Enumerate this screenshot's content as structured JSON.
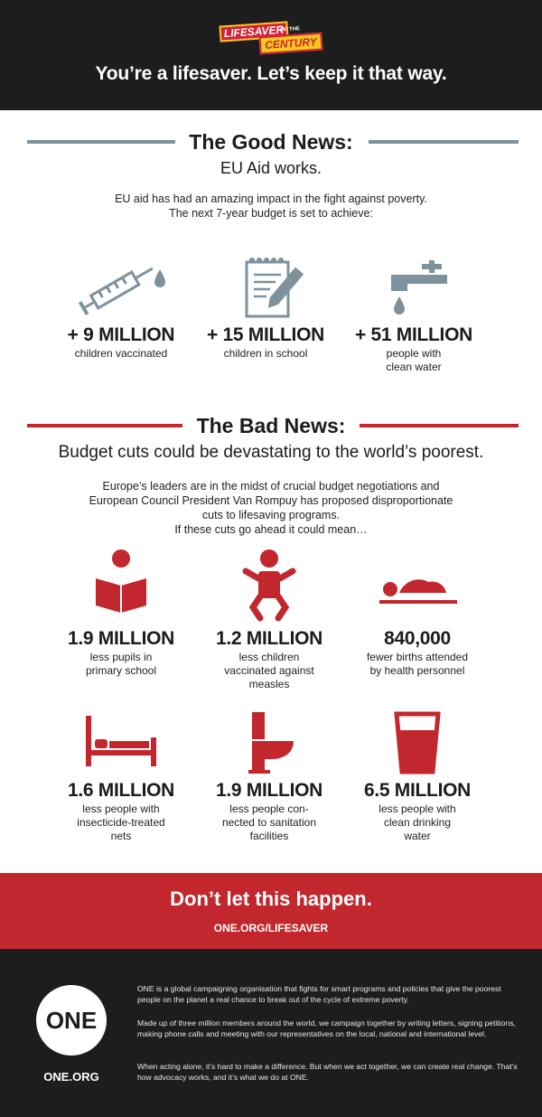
{
  "header": {
    "logo_top": "LIFESAVER",
    "logo_mid": "OF THE",
    "logo_bottom": "CENTURY",
    "tagline": "You’re a lifesaver. Let’s keep it that way."
  },
  "good_news": {
    "title": "The Good News:",
    "subtitle": "EU Aid works.",
    "intro_line1": "EU aid has had an amazing impact in the fight against poverty.",
    "intro_line2": "The next 7-year budget is set to achieve:",
    "stats": [
      {
        "icon": "syringe-icon",
        "value": "+ 9 MILLION",
        "desc_line1": "children vaccinated",
        "desc_line2": ""
      },
      {
        "icon": "notebook-pencil-icon",
        "value": "+ 15 MILLION",
        "desc_line1": "children in school",
        "desc_line2": ""
      },
      {
        "icon": "water-tap-icon",
        "value": "+ 51 MILLION",
        "desc_line1": "people with",
        "desc_line2": "clean water"
      }
    ]
  },
  "bad_news": {
    "title": "The Bad News:",
    "subtitle": "Budget cuts could be devastating to the world’s poorest.",
    "intro_line1": "Europe’s leaders are in the midst of crucial budget negotiations and",
    "intro_line2": "European Council President Van Rompuy has proposed disproportionate",
    "intro_line3": "cuts to lifesaving programs.",
    "intro_line4": "If these cuts go ahead it could mean…",
    "stats": [
      {
        "icon": "reading-pupil-icon",
        "value": "1.9 MILLION",
        "desc_line1": "less pupils in",
        "desc_line2": "primary school",
        "desc_line3": ""
      },
      {
        "icon": "baby-icon",
        "value": "1.2 MILLION",
        "desc_line1": "less children",
        "desc_line2": "vaccinated against",
        "desc_line3": "measles"
      },
      {
        "icon": "newborn-icon",
        "value": "840,000",
        "desc_line1": "fewer births attended",
        "desc_line2": "by health personnel",
        "desc_line3": ""
      },
      {
        "icon": "bed-icon",
        "value": "1.6 MILLION",
        "desc_line1": "less people with",
        "desc_line2": "insecticide-treated",
        "desc_line3": "nets"
      },
      {
        "icon": "toilet-icon",
        "value": "1.9 MILLION",
        "desc_line1": "less people con-",
        "desc_line2": "nected to sanitation",
        "desc_line3": "facilities"
      },
      {
        "icon": "water-glass-icon",
        "value": "6.5 MILLION",
        "desc_line1": "less people with",
        "desc_line2": "clean drinking",
        "desc_line3": "water"
      }
    ]
  },
  "cta": {
    "headline": "Don’t let this happen.",
    "url": "ONE.ORG/LIFESAVER"
  },
  "footer": {
    "logo_text": "ONE",
    "url": "ONE.ORG",
    "p1": "ONE is a global campaigning organisation that fights for smart programs and policies that give the poorest people on the planet a real chance to break out of the cycle of extreme poverty.",
    "p2": "Made up of three million members around the world, we campaign together by writing letters, signing petitions, making phone calls and meeting with our representatives on the local, national and international level.",
    "p3": "When acting alone, it’s hard to make a difference. But when we act together, we can create real change. That’s how advocacy works, and it’s what we do at ONE."
  },
  "colors": {
    "dark": "#1d1d1d",
    "accent_red": "#c1272d",
    "good_gray": "#7d929c",
    "logo_yellow": "#f5c81e"
  }
}
